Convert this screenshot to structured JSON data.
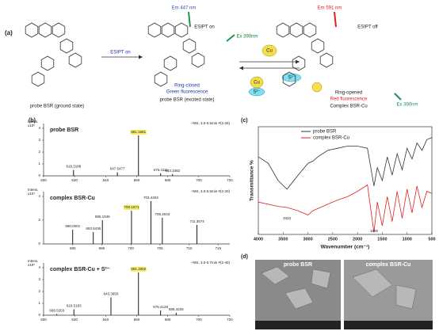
{
  "scheme": {
    "label": "(a)",
    "ground": "probe BSR (ground state)",
    "arrow1": "ESIPT on",
    "em1": "Em 447 nm",
    "esipt_mid": "ESIPT on",
    "ex1": "Ex 390nm",
    "closed": "Ring-closed",
    "green": "Green fluorescence",
    "excited": "probe BSR (excited state)",
    "em2": "Em 591 nm",
    "esipt_off": "ESIPT off",
    "ex2": "Ex 390nm",
    "opened": "Ring-opened",
    "red": "Red fluorescence",
    "complex": "Complex BSR-Cu",
    "cu": "Cu",
    "cu_b": "Cu",
    "s": "S²⁻",
    "s_b": "S²⁻"
  },
  "panels": {
    "b": "(b)",
    "c": "(c)",
    "d": "(d)"
  },
  "sem": {
    "images": [
      "probe BSR",
      "complex BSR-Cu"
    ]
  },
  "chart_data": [
    {
      "type": "ms",
      "title": "probe BSR",
      "header": "+MS, 3.0-5.5min #(2-26)",
      "y_label": "Intens.",
      "y_unit": "x10⁵",
      "color": "#000000",
      "highlight": 2,
      "x": [
        619.3188,
        647.5477,
        661.1661,
        675.4111,
        683.1082
      ],
      "values": [
        0.5,
        0.3,
        3.4,
        0.2,
        0.15
      ],
      "xlim": [
        600,
        720
      ],
      "xticks": [
        600,
        620,
        640,
        660,
        680,
        700,
        720
      ],
      "ylim": [
        0,
        4
      ],
      "yticks": [
        0,
        1,
        2,
        3,
        4
      ]
    },
    {
      "type": "ms",
      "title": "complex BSR-Cu",
      "header": "+MS, 3.0-5.5min #(2-20)",
      "y_label": "Intens.",
      "y_unit": "x10⁴",
      "color": "#000000",
      "highlight": 3,
      "x": [
        690.0001,
        693.5436,
        695.1046,
        700.1071,
        703.4403,
        705.4043,
        711.3574
      ],
      "values": [
        1.2,
        1.0,
        2.0,
        2.8,
        3.6,
        2.2,
        1.6
      ],
      "xlim": [
        685,
        717
      ],
      "xticks": [
        690,
        695,
        700,
        705,
        710,
        715
      ],
      "ylim": [
        0,
        4
      ],
      "yticks": [
        0,
        2,
        4
      ]
    },
    {
      "type": "ms",
      "title": "complex BSR-Cu + S²⁻",
      "header": "+MS, 3.0-5.7min #(2-40)",
      "y_label": "Intens.",
      "y_unit": "x10⁵",
      "color": "#000000",
      "highlight": 3,
      "x": [
        608.5303,
        619.5183,
        643.395,
        661.1502,
        675.4128,
        685.4225
      ],
      "x_labels": [
        "608.5303",
        "619.5183",
        "643.3950",
        "661.1502",
        "675.4128",
        "685.4225"
      ],
      "values": [
        0.1,
        0.5,
        1.5,
        3.6,
        0.4,
        0.2
      ],
      "xlim": [
        600,
        720
      ],
      "xticks": [
        600,
        620,
        640,
        660,
        680,
        700,
        720
      ],
      "ylim": [
        0,
        4
      ],
      "yticks": [
        0,
        1,
        2,
        3,
        4
      ]
    },
    {
      "type": "line",
      "x_label": "Wavenumber (cm⁻¹)",
      "y_label": "Transmittance %",
      "legend": "top",
      "x": [
        4000,
        3800,
        3600,
        3422,
        3200,
        3000,
        2900,
        2800,
        2600,
        2400,
        2200,
        2000,
        1800,
        1669,
        1600,
        1500,
        1400,
        1300,
        1200,
        1100,
        1000,
        900,
        800,
        700,
        600,
        500
      ],
      "series": [
        {
          "name": "probe BSR",
          "color": "#333333",
          "values": [
            72,
            66,
            50,
            42,
            55,
            66,
            68,
            72,
            78,
            80,
            82,
            82,
            80,
            45,
            62,
            50,
            72,
            55,
            75,
            60,
            80,
            70,
            85,
            78,
            88,
            90
          ]
        },
        {
          "name": "complex BSR-Cu",
          "color": "#e02020",
          "values": [
            30,
            28,
            26,
            25,
            22,
            18,
            22,
            24,
            28,
            32,
            35,
            40,
            46,
            2,
            30,
            8,
            35,
            12,
            40,
            15,
            42,
            20,
            45,
            25,
            40,
            38
          ]
        }
      ],
      "annotations": [
        {
          "text": "3422",
          "x": 3422
        },
        {
          "text": "1669",
          "x": 1669
        }
      ],
      "xlim": [
        4000,
        500
      ],
      "xticks": [
        4000,
        3500,
        3000,
        2500,
        2000,
        1500,
        1000,
        500
      ],
      "ylim": [
        0,
        100
      ]
    }
  ]
}
